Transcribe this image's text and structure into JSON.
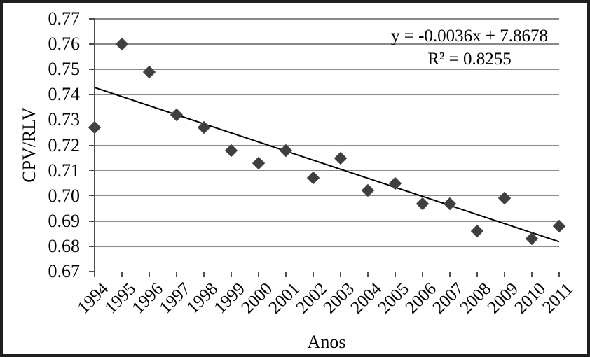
{
  "chart_data": {
    "type": "scatter",
    "title": "",
    "xlabel": "Anos",
    "ylabel": "CPV/RLV",
    "categories": [
      "1994",
      "1995",
      "1996",
      "1997",
      "1998",
      "1999",
      "2000",
      "2001",
      "2002",
      "2003",
      "2004",
      "2005",
      "2006",
      "2007",
      "2008",
      "2009",
      "2010",
      "2011"
    ],
    "values": [
      0.727,
      0.76,
      0.749,
      0.732,
      0.727,
      0.718,
      0.713,
      0.718,
      0.707,
      0.715,
      0.702,
      0.705,
      0.697,
      0.697,
      0.686,
      0.699,
      0.683,
      0.688
    ],
    "ylim": [
      0.67,
      0.77
    ],
    "yticks": [
      "0.77",
      "0.76",
      "0.75",
      "0.74",
      "0.73",
      "0.72",
      "0.71",
      "0.70",
      "0.69",
      "0.68",
      "0.67"
    ],
    "grid": "horizontal",
    "legend": "none",
    "marker": "diamond",
    "trendline": {
      "type": "linear",
      "equation": "y = -0.0036x + 7.8678",
      "r_squared": "R² = 0.8255",
      "start_value": 0.743,
      "end_value": 0.682
    },
    "colors": {
      "marker": "#3f3f3f",
      "gridline": "#8a8a8a",
      "axis": "#4d4d4d",
      "trendline": "#000000",
      "text": "#000000",
      "frame": "#1f1f1f"
    }
  }
}
